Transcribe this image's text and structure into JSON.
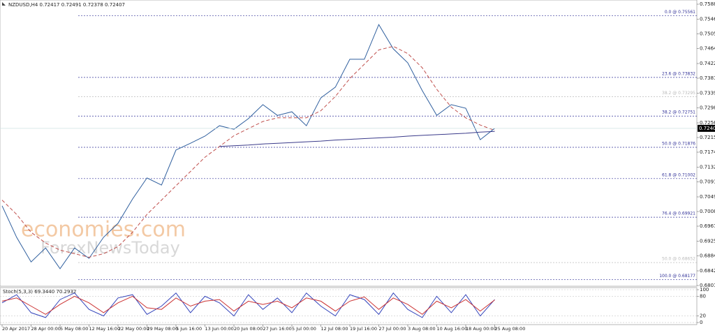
{
  "chart_data": [
    {
      "type": "line",
      "title": "NZDUSD,H4  0.72417 0.72491 0.72378 0.72407",
      "watermark": [
        "economies.com",
        "ForexNewsToday"
      ],
      "categories": [
        "20 Apr 2017",
        null,
        "28 Apr 00:00",
        null,
        "5 May 08:00",
        null,
        "12 May 16:00",
        null,
        "22 May 00:00",
        null,
        "29 May 08:00",
        null,
        "5 Jun 16:00",
        null,
        "13 Jun 00:00",
        null,
        "20 Jun 08:00",
        null,
        "27 Jun 16:00",
        null,
        "5 Jul 00:00",
        null,
        "12 Jul 08:00",
        null,
        "19 Jul 16:00",
        null,
        "27 Jul 00:00",
        null,
        "3 Aug 08:00",
        null,
        "10 Aug 16:00",
        null,
        "18 Aug 00:00",
        null,
        "25 Aug 08:00"
      ],
      "series": [
        {
          "color": "#2f5f9e",
          "values": [
            0.7024,
            0.6936,
            0.6867,
            0.6906,
            0.6848,
            0.6906,
            0.6877,
            0.6936,
            0.6975,
            0.7043,
            0.7102,
            0.7082,
            0.718,
            0.7199,
            0.7219,
            0.7248,
            0.7238,
            0.7268,
            0.7307,
            0.7277,
            0.7287,
            0.7248,
            0.7326,
            0.7356,
            0.7434,
            0.7434,
            0.7531,
            0.7463,
            0.7424,
            0.7346,
            0.7277,
            0.7307,
            0.7297,
            0.7209,
            0.72407
          ]
        },
        {
          "color": "#c0504d",
          "dashed": true,
          "values": [
            0.704,
            0.7,
            0.695,
            0.692,
            0.69,
            0.689,
            0.688,
            0.689,
            0.691,
            0.695,
            0.7,
            0.704,
            0.708,
            0.712,
            0.716,
            0.719,
            0.722,
            0.724,
            0.726,
            0.727,
            0.727,
            0.727,
            0.729,
            0.733,
            0.738,
            0.742,
            0.746,
            0.747,
            0.745,
            0.741,
            0.735,
            0.73,
            0.727,
            0.725,
            0.7235
          ]
        },
        {
          "color": "#3a3a8a",
          "values": [
            null,
            null,
            null,
            null,
            null,
            null,
            null,
            null,
            null,
            null,
            null,
            null,
            null,
            null,
            null,
            0.719,
            0.7192,
            0.7194,
            0.7197,
            0.7199,
            0.7201,
            0.7203,
            0.7205,
            0.7208,
            0.721,
            0.7212,
            0.7214,
            0.7216,
            0.7219,
            0.7221,
            0.7223,
            0.7225,
            0.7227,
            0.723,
            0.7232
          ]
        }
      ],
      "levels": [
        {
          "value": 0.75561,
          "label": "0.0 @ 0.75561",
          "color": "#333399"
        },
        {
          "value": 0.73832,
          "label": "23.6 @ 0.73832",
          "color": "#333399"
        },
        {
          "value": 0.73295,
          "label": "38.2 @ 0.73295",
          "color": "#bbbbbb"
        },
        {
          "value": 0.72751,
          "label": "38.2 @ 0.72751",
          "color": "#333399"
        },
        {
          "value": 0.71876,
          "label": "50.0 @ 0.71876",
          "color": "#333399"
        },
        {
          "value": 0.71002,
          "label": "61.8 @ 0.71002",
          "color": "#333399"
        },
        {
          "value": 0.69921,
          "label": "76.4 @ 0.69921",
          "color": "#333399"
        },
        {
          "value": 0.68652,
          "label": "50.0 @ 0.68652",
          "color": "#bbbbbb"
        },
        {
          "value": 0.68177,
          "label": "100.0 @ 0.68177",
          "color": "#333399"
        }
      ],
      "current": 0.72407,
      "ylim": [
        0.6801,
        0.7588
      ],
      "yticks": [
        {
          "value": 0.7588,
          "label": "0.75880"
        },
        {
          "value": 0.7546,
          "label": "0.75460"
        },
        {
          "value": 0.7505,
          "label": "0.75050"
        },
        {
          "value": 0.7464,
          "label": "0.74640"
        },
        {
          "value": 0.7422,
          "label": "0.74220"
        },
        {
          "value": 0.7381,
          "label": "0.73810"
        },
        {
          "value": 0.7339,
          "label": "0.73390"
        },
        {
          "value": 0.7298,
          "label": "0.72980"
        },
        {
          "value": 0.7256,
          "label": "0.72560"
        },
        {
          "value": 0.7215,
          "label": "0.72150"
        },
        {
          "value": 0.7174,
          "label": "0.71740"
        },
        {
          "value": 0.7132,
          "label": "0.71320"
        },
        {
          "value": 0.7091,
          "label": "0.70910"
        },
        {
          "value": 0.7049,
          "label": "0.70490"
        },
        {
          "value": 0.7008,
          "label": "0.70080"
        },
        {
          "value": 0.6967,
          "label": "0.69670"
        },
        {
          "value": 0.6925,
          "label": "0.69250"
        },
        {
          "value": 0.6884,
          "label": "0.68840"
        },
        {
          "value": 0.6842,
          "label": "0.68420"
        },
        {
          "value": 0.6801,
          "label": "0.68010"
        }
      ],
      "grid": false
    },
    {
      "type": "line",
      "title": "Stoch(5,3,3) 69.3440 70.2932",
      "series": [
        {
          "color": "#3344bb",
          "values": [
            60,
            85,
            30,
            15,
            70,
            90,
            40,
            20,
            75,
            85,
            25,
            50,
            90,
            30,
            80,
            60,
            20,
            85,
            40,
            75,
            30,
            90,
            50,
            20,
            85,
            70,
            25,
            90,
            40,
            15,
            80,
            30,
            85,
            20,
            70
          ]
        },
        {
          "color": "#cc3333",
          "values": [
            65,
            75,
            50,
            25,
            55,
            80,
            60,
            30,
            60,
            80,
            45,
            40,
            75,
            50,
            65,
            70,
            35,
            65,
            55,
            65,
            45,
            75,
            65,
            35,
            65,
            78,
            40,
            75,
            55,
            25,
            65,
            45,
            70,
            35,
            69
          ]
        }
      ],
      "ylim": [
        0,
        100
      ],
      "yticks": [
        100,
        80,
        20,
        0
      ],
      "grid": true
    }
  ]
}
